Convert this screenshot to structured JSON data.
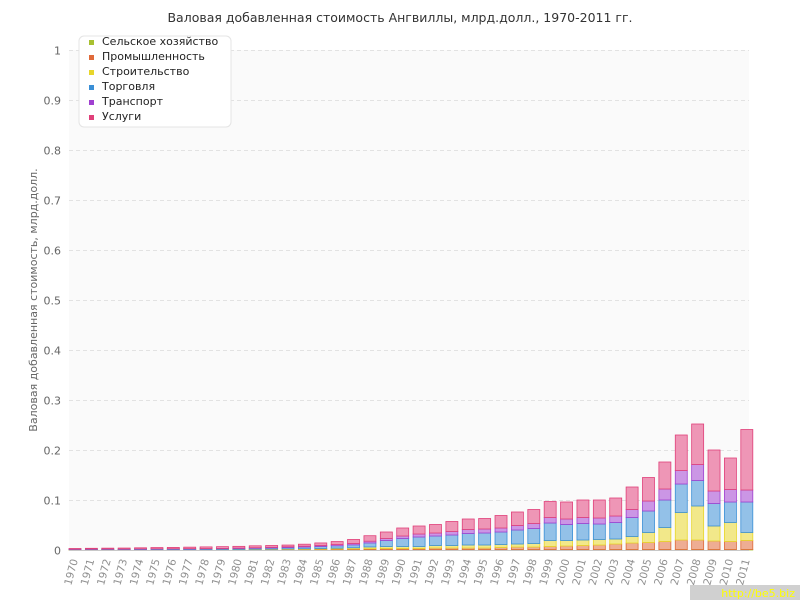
{
  "chart_data": {
    "type": "bar",
    "stacked": true,
    "title": "Валовая добавленная стоимость Ангвиллы, млрд.долл., 1970-2011 гг.",
    "xlabel": "",
    "ylabel": "Валовая добавленная стоимость, млрд.долл.",
    "ylim": [
      0,
      1
    ],
    "yticks": [
      "0",
      "0.1",
      "0.2",
      "0.3",
      "0.4",
      "0.5",
      "0.6",
      "0.7",
      "0.8",
      "0.9",
      "1"
    ],
    "grid": true,
    "legend_position": "top-left",
    "categories": [
      "1970",
      "1971",
      "1972",
      "1973",
      "1974",
      "1975",
      "1976",
      "1977",
      "1978",
      "1979",
      "1980",
      "1981",
      "1982",
      "1983",
      "1984",
      "1985",
      "1986",
      "1987",
      "1988",
      "1989",
      "1990",
      "1991",
      "1992",
      "1993",
      "1994",
      "1995",
      "1996",
      "1997",
      "1998",
      "1999",
      "2000",
      "2001",
      "2002",
      "2003",
      "2004",
      "2005",
      "2006",
      "2007",
      "2008",
      "2009",
      "2010",
      "2011"
    ],
    "series": [
      {
        "name": "Сельское хозяйство",
        "color": "#a8c030",
        "values": [
          0.0003,
          0.0003,
          0.0003,
          0.0003,
          0.0003,
          0.0003,
          0.0003,
          0.0003,
          0.0003,
          0.0004,
          0.0004,
          0.0005,
          0.0005,
          0.0006,
          0.0006,
          0.0007,
          0.0008,
          0.0009,
          0.001,
          0.001,
          0.001,
          0.001,
          0.001,
          0.001,
          0.001,
          0.001,
          0.001,
          0.001,
          0.001,
          0.001,
          0.001,
          0.001,
          0.001,
          0.001,
          0.001,
          0.001,
          0.001,
          0.001,
          0.001,
          0.001,
          0.001,
          0.001
        ]
      },
      {
        "name": "Промышленность",
        "color": "#e06a3a",
        "values": [
          0.0002,
          0.0002,
          0.0002,
          0.0002,
          0.0002,
          0.0003,
          0.0003,
          0.0003,
          0.0003,
          0.0003,
          0.0003,
          0.0004,
          0.0005,
          0.0006,
          0.0007,
          0.0009,
          0.0011,
          0.0013,
          0.0016,
          0.002,
          0.002,
          0.002,
          0.003,
          0.003,
          0.003,
          0.003,
          0.004,
          0.005,
          0.005,
          0.006,
          0.007,
          0.008,
          0.009,
          0.011,
          0.013,
          0.014,
          0.016,
          0.019,
          0.019,
          0.017,
          0.016,
          0.018
        ]
      },
      {
        "name": "Строительство",
        "color": "#e8d62a",
        "values": [
          0.0002,
          0.0002,
          0.0002,
          0.0002,
          0.0003,
          0.0003,
          0.0003,
          0.0003,
          0.0004,
          0.0004,
          0.0005,
          0.0007,
          0.0008,
          0.001,
          0.0012,
          0.0015,
          0.0018,
          0.0023,
          0.0035,
          0.004,
          0.004,
          0.004,
          0.005,
          0.005,
          0.006,
          0.006,
          0.006,
          0.006,
          0.007,
          0.012,
          0.011,
          0.011,
          0.011,
          0.01,
          0.013,
          0.02,
          0.028,
          0.055,
          0.068,
          0.03,
          0.038,
          0.016
        ]
      },
      {
        "name": "Торговля",
        "color": "#3a8fd6",
        "values": [
          0.0006,
          0.0007,
          0.0008,
          0.0008,
          0.0009,
          0.001,
          0.0011,
          0.0012,
          0.0013,
          0.0014,
          0.0017,
          0.002,
          0.0024,
          0.0028,
          0.0034,
          0.004,
          0.0048,
          0.0058,
          0.008,
          0.012,
          0.016,
          0.019,
          0.019,
          0.021,
          0.023,
          0.024,
          0.025,
          0.028,
          0.03,
          0.035,
          0.032,
          0.033,
          0.031,
          0.033,
          0.038,
          0.043,
          0.055,
          0.057,
          0.051,
          0.045,
          0.041,
          0.061
        ]
      },
      {
        "name": "Транспорт",
        "color": "#a040d0",
        "values": [
          0.0003,
          0.0004,
          0.0004,
          0.0004,
          0.0005,
          0.0005,
          0.0005,
          0.0006,
          0.0006,
          0.0007,
          0.0009,
          0.001,
          0.0012,
          0.0014,
          0.0017,
          0.002,
          0.0024,
          0.0028,
          0.0035,
          0.004,
          0.005,
          0.006,
          0.006,
          0.007,
          0.008,
          0.008,
          0.008,
          0.009,
          0.01,
          0.011,
          0.011,
          0.012,
          0.012,
          0.013,
          0.016,
          0.02,
          0.022,
          0.027,
          0.032,
          0.025,
          0.025,
          0.024
        ]
      },
      {
        "name": "Услуги",
        "color": "#e0407a",
        "values": [
          0.0014,
          0.0016,
          0.0018,
          0.002,
          0.0022,
          0.0025,
          0.0027,
          0.003,
          0.0033,
          0.0035,
          0.0035,
          0.0038,
          0.0036,
          0.0035,
          0.004,
          0.005,
          0.006,
          0.008,
          0.011,
          0.013,
          0.016,
          0.016,
          0.017,
          0.02,
          0.021,
          0.021,
          0.025,
          0.027,
          0.028,
          0.032,
          0.034,
          0.035,
          0.036,
          0.036,
          0.045,
          0.047,
          0.054,
          0.071,
          0.081,
          0.082,
          0.063,
          0.121
        ]
      }
    ]
  },
  "watermark": "http://be5.biz"
}
